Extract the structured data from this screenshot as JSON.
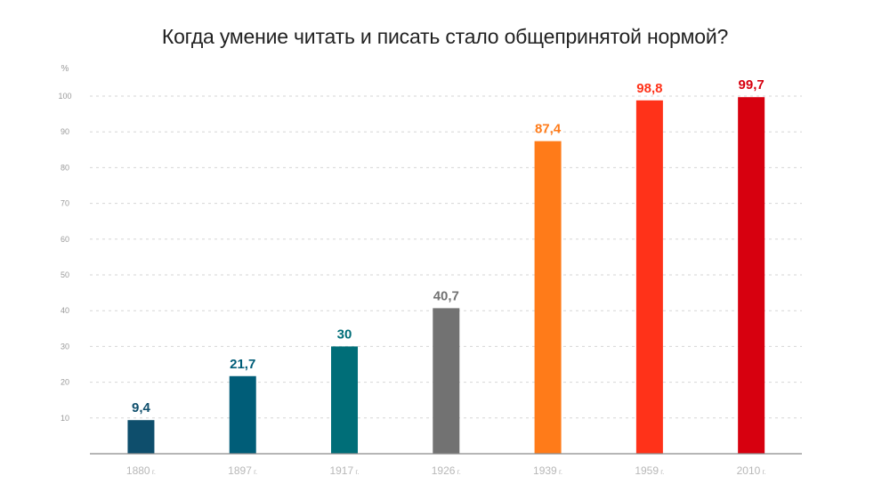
{
  "chart_data": {
    "type": "bar",
    "title": "Когда умение читать и писать стало общепринятой нормой?",
    "unit_label": "%",
    "ylim": [
      0,
      100
    ],
    "y_ticks": [
      10,
      20,
      30,
      40,
      50,
      60,
      70,
      80,
      90,
      100
    ],
    "grid": true,
    "categories": [
      "1880 г.",
      "1897 г.",
      "1917 г.",
      "1926 г.",
      "1939 г.",
      "1959 г.",
      "2010 г."
    ],
    "values": [
      9.4,
      21.7,
      30,
      40.7,
      87.4,
      98.8,
      99.7
    ],
    "value_labels": [
      "9,4",
      "21,7",
      "30",
      "40,7",
      "87,4",
      "98,8",
      "99,7"
    ],
    "bar_colors": [
      "#0e4e6c",
      "#005d78",
      "#006e78",
      "#727272",
      "#ff7b19",
      "#ff3219",
      "#d7000f"
    ],
    "label_colors": [
      "#0e4e6c",
      "#005d78",
      "#006e78",
      "#727272",
      "#ff7b19",
      "#ff3219",
      "#d7000f"
    ]
  }
}
